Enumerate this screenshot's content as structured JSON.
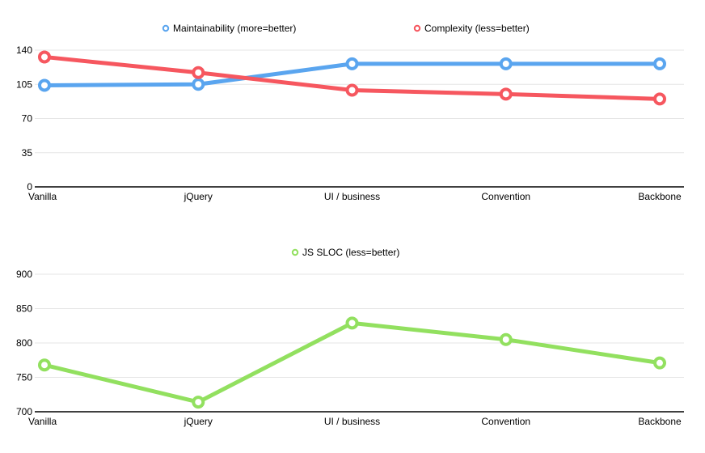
{
  "chart_data": [
    {
      "type": "line",
      "categories": [
        "Vanilla",
        "jQuery",
        "UI / business",
        "Convention",
        "Backbone"
      ],
      "series": [
        {
          "name": "Maintainability (more=better)",
          "color": "#5aa5ef",
          "values": [
            104,
            105,
            126,
            126,
            126
          ]
        },
        {
          "name": "Complexity (less=better)",
          "color": "#f6575f",
          "values": [
            133,
            117,
            99,
            95,
            90
          ]
        }
      ],
      "ylim": [
        0,
        140
      ],
      "yticks": [
        0,
        35,
        70,
        105,
        140
      ],
      "grid": true,
      "legend": "top-center"
    },
    {
      "type": "line",
      "categories": [
        "Vanilla",
        "jQuery",
        "UI / business",
        "Convention",
        "Backbone"
      ],
      "series": [
        {
          "name": "JS SLOC (less=better)",
          "color": "#92e05f",
          "values": [
            768,
            714,
            829,
            805,
            771
          ]
        }
      ],
      "ylim": [
        700,
        900
      ],
      "yticks": [
        700,
        750,
        800,
        850,
        900
      ],
      "grid": true,
      "legend": "top-center"
    }
  ]
}
